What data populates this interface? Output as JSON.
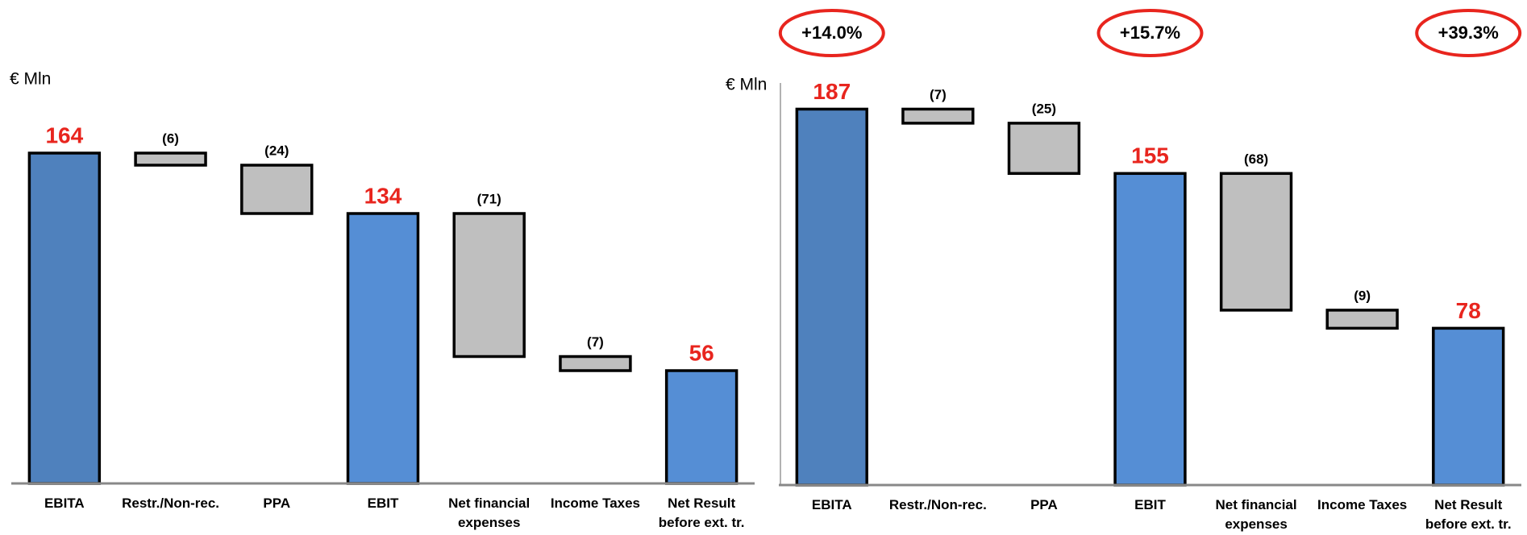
{
  "chart_data": [
    {
      "type": "waterfall",
      "ylabel": "€ Mln",
      "categories": [
        "EBITA",
        "Restr./Non-rec.",
        "PPA",
        "EBIT",
        "Net financial\nexpenses",
        "Income Taxes",
        "Net Result\nbefore ext. tr."
      ],
      "values": [
        164,
        -6,
        -24,
        134,
        -71,
        -7,
        56
      ],
      "value_labels": [
        "164",
        "(6)",
        "(24)",
        "134",
        "(71)",
        "(7)",
        "56"
      ],
      "measure": [
        "total",
        "relative",
        "relative",
        "total",
        "relative",
        "relative",
        "total"
      ],
      "colors": [
        "#4f81bd",
        "#bfbfbf",
        "#bfbfbf",
        "#558ed5",
        "#bfbfbf",
        "#bfbfbf",
        "#558ed5"
      ],
      "ylim": [
        0,
        200
      ],
      "y_axis_line": false
    },
    {
      "type": "waterfall",
      "ylabel": "€ Mln",
      "categories": [
        "EBITA",
        "Restr./Non-rec.",
        "PPA",
        "EBIT",
        "Net financial\nexpenses",
        "Income Taxes",
        "Net Result\nbefore ext. tr."
      ],
      "values": [
        187,
        -7,
        -25,
        155,
        -68,
        -9,
        78
      ],
      "value_labels": [
        "187",
        "(7)",
        "(25)",
        "155",
        "(68)",
        "(9)",
        "78"
      ],
      "measure": [
        "total",
        "relative",
        "relative",
        "total",
        "relative",
        "relative",
        "total"
      ],
      "colors": [
        "#4f81bd",
        "#bfbfbf",
        "#bfbfbf",
        "#558ed5",
        "#bfbfbf",
        "#bfbfbf",
        "#558ed5"
      ],
      "ylim": [
        0,
        200
      ],
      "y_axis_line": true,
      "annotations": [
        {
          "text": "+14.0%",
          "category": "EBITA"
        },
        {
          "text": "+15.7%",
          "category": "EBIT"
        },
        {
          "text": "+39.3%",
          "category": "Net Result\nbefore ext. tr."
        }
      ]
    }
  ]
}
